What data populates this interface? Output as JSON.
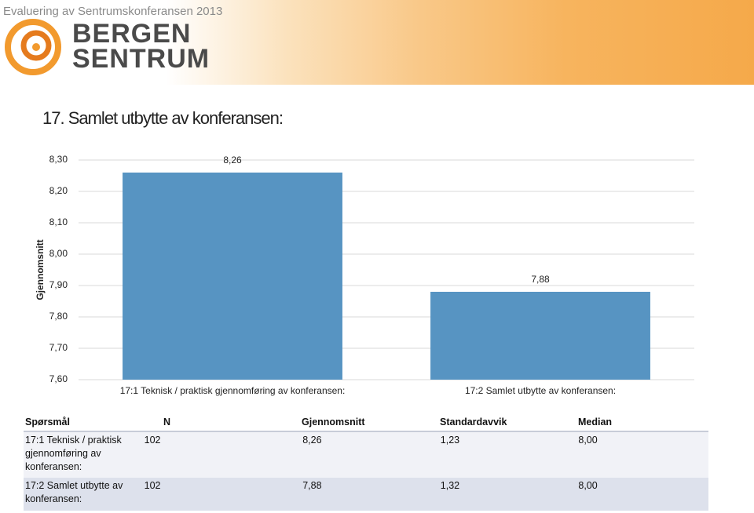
{
  "header": {
    "title": "Evaluering av Sentrumskonferansen 2013",
    "logo_line1": "BERGEN",
    "logo_line2": "SENTRUM"
  },
  "chart_data": {
    "type": "bar",
    "title": "17. Samlet utbytte av konferansen:",
    "y_label": "Gjennomsnitt",
    "categories": [
      "17:1 Teknisk / praktisk gjennomføring av konferansen:",
      "17:2 Samlet utbytte av konferansen:"
    ],
    "values": [
      8.26,
      7.88
    ],
    "value_labels": [
      "8,26",
      "7,88"
    ],
    "color": "#5794c2",
    "ylim": [
      7.6,
      8.3
    ],
    "yticks": [
      {
        "value": 7.6,
        "label": "7,60"
      },
      {
        "value": 7.7,
        "label": "7,70"
      },
      {
        "value": 7.8,
        "label": "7,80"
      },
      {
        "value": 7.9,
        "label": "7,90"
      },
      {
        "value": 8.0,
        "label": "8,00"
      },
      {
        "value": 8.1,
        "label": "8,10"
      },
      {
        "value": 8.2,
        "label": "8,20"
      },
      {
        "value": 8.3,
        "label": "8,30"
      }
    ],
    "grid": true
  },
  "table": {
    "columns": [
      "Spørsmål",
      "N",
      "Gjennomsnitt",
      "Standardavvik",
      "Median"
    ],
    "rows": [
      [
        "17:1 Teknisk / praktisk gjennomføring av konferansen:",
        "102",
        "8,26",
        "1,23",
        "8,00"
      ],
      [
        "17:2 Samlet utbytte av konferansen:",
        "102",
        "7,88",
        "1,32",
        "8,00"
      ]
    ]
  }
}
